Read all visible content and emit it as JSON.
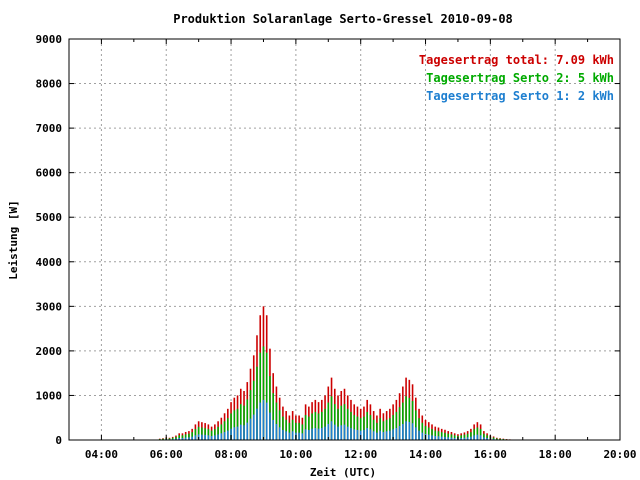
{
  "chart_data": {
    "type": "bar",
    "title": "Produktion Solaranlage Serto-Gressel 2010-09-08",
    "xlabel": "Zeit (UTC)",
    "ylabel": "Leistung [W]",
    "xlim_hours": [
      3.0,
      20.0
    ],
    "ylim": [
      0,
      9000
    ],
    "x_ticks": [
      {
        "value": 4,
        "label": "04:00"
      },
      {
        "value": 6,
        "label": "06:00"
      },
      {
        "value": 8,
        "label": "08:00"
      },
      {
        "value": 10,
        "label": "10:00"
      },
      {
        "value": 12,
        "label": "12:00"
      },
      {
        "value": 14,
        "label": "14:00"
      },
      {
        "value": 16,
        "label": "16:00"
      },
      {
        "value": 18,
        "label": "18:00"
      },
      {
        "value": 20,
        "label": "20:00"
      }
    ],
    "y_ticks": [
      0,
      1000,
      2000,
      3000,
      4000,
      5000,
      6000,
      7000,
      8000,
      9000
    ],
    "grid": true,
    "legend_position": "top-right",
    "colors": {
      "total": "#cc0000",
      "serto2": "#00aa00",
      "serto1": "#1e7fd0"
    },
    "legend": [
      {
        "key": "total",
        "label": "Tagesertrag total: 7.09 kWh"
      },
      {
        "key": "serto2",
        "label": "Tagesertrag Serto 2: 5 kWh"
      },
      {
        "key": "serto1",
        "label": "Tagesertrag Serto 1: 2 kWh"
      }
    ],
    "interval_hours": 0.1,
    "x_start_hours": 5.8,
    "series": [
      {
        "key": "total",
        "values": [
          30,
          40,
          60,
          50,
          70,
          100,
          150,
          150,
          180,
          200,
          250,
          350,
          420,
          400,
          380,
          350,
          300,
          350,
          420,
          500,
          600,
          700,
          850,
          950,
          1000,
          1150,
          1100,
          1300,
          1600,
          1900,
          2350,
          2800,
          3000,
          2800,
          2050,
          1500,
          1200,
          950,
          750,
          650,
          550,
          650,
          550,
          550,
          500,
          800,
          750,
          850,
          900,
          850,
          900,
          1000,
          1200,
          1400,
          1150,
          1000,
          1100,
          1150,
          1000,
          900,
          800,
          750,
          700,
          750,
          900,
          800,
          650,
          550,
          700,
          600,
          650,
          700,
          800,
          900,
          1050,
          1200,
          1400,
          1350,
          1250,
          950,
          700,
          550,
          450,
          400,
          350,
          300,
          280,
          250,
          230,
          200,
          180,
          150,
          130,
          150,
          170,
          200,
          250,
          350,
          400,
          350,
          200,
          150,
          100,
          80,
          50,
          40,
          30,
          20,
          15
        ]
      },
      {
        "key": "serto2",
        "values": [
          20,
          28,
          42,
          35,
          50,
          70,
          105,
          105,
          125,
          140,
          175,
          245,
          295,
          280,
          265,
          245,
          210,
          245,
          295,
          350,
          420,
          490,
          595,
          665,
          700,
          805,
          770,
          910,
          1120,
          1330,
          1645,
          1960,
          2100,
          1960,
          1435,
          1050,
          840,
          665,
          525,
          455,
          385,
          455,
          385,
          385,
          350,
          560,
          525,
          595,
          630,
          595,
          630,
          700,
          840,
          980,
          805,
          700,
          770,
          805,
          700,
          630,
          560,
          525,
          490,
          525,
          630,
          560,
          455,
          385,
          490,
          420,
          455,
          490,
          560,
          630,
          735,
          840,
          980,
          945,
          875,
          665,
          490,
          385,
          315,
          280,
          245,
          210,
          196,
          175,
          161,
          140,
          126,
          105,
          91,
          105,
          119,
          140,
          175,
          245,
          280,
          245,
          140,
          105,
          70,
          56,
          35,
          28,
          21,
          14,
          10
        ]
      },
      {
        "key": "serto1",
        "values": [
          10,
          12,
          18,
          15,
          20,
          30,
          45,
          45,
          55,
          60,
          75,
          105,
          125,
          120,
          115,
          105,
          90,
          105,
          125,
          150,
          180,
          210,
          255,
          285,
          300,
          345,
          330,
          390,
          480,
          570,
          705,
          840,
          900,
          840,
          615,
          450,
          360,
          285,
          225,
          195,
          165,
          195,
          165,
          165,
          150,
          240,
          225,
          255,
          270,
          255,
          270,
          300,
          360,
          420,
          345,
          300,
          330,
          345,
          300,
          270,
          240,
          225,
          210,
          225,
          270,
          240,
          195,
          165,
          210,
          180,
          195,
          210,
          240,
          270,
          315,
          360,
          420,
          405,
          375,
          285,
          210,
          165,
          135,
          120,
          105,
          90,
          84,
          75,
          69,
          60,
          54,
          45,
          39,
          45,
          51,
          60,
          75,
          105,
          120,
          105,
          60,
          45,
          30,
          24,
          15,
          12,
          9,
          6,
          5
        ]
      }
    ]
  }
}
